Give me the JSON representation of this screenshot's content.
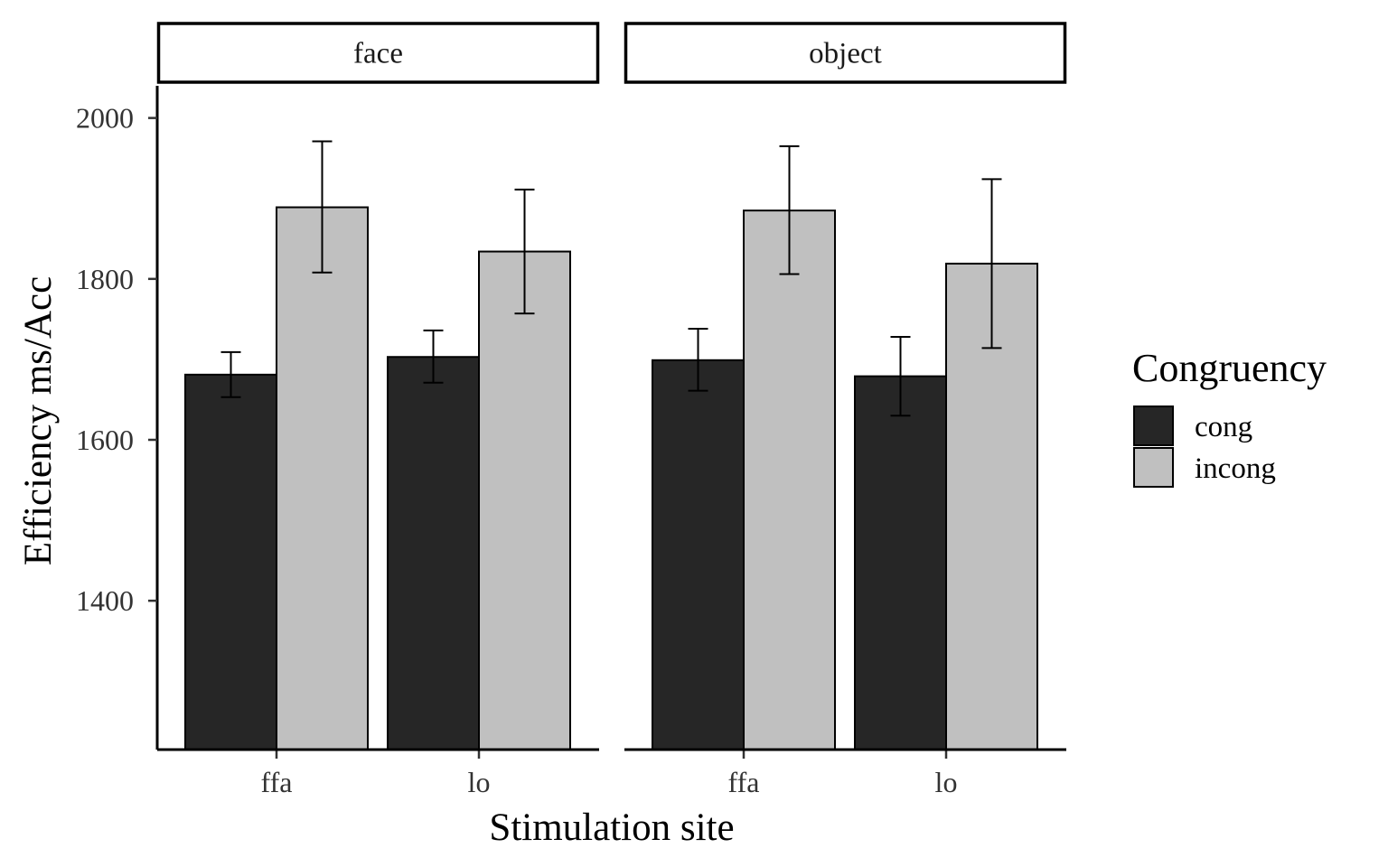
{
  "chart_data": {
    "type": "bar",
    "facets": [
      "face",
      "object"
    ],
    "categories": [
      "ffa",
      "lo"
    ],
    "xlabel": "Stimulation site",
    "ylabel": "Efficiency ms/Acc",
    "yticks": [
      1400,
      1600,
      1800,
      2000
    ],
    "ylim": [
      1215,
      2040
    ],
    "legend": {
      "title": "Congruency",
      "position": "right",
      "entries": [
        {
          "name": "cong",
          "color": "#262626"
        },
        {
          "name": "incong",
          "color": "#c0c0c0"
        }
      ]
    },
    "series": [
      {
        "name": "cong",
        "color": "#262626",
        "values": {
          "face": {
            "ffa": {
              "mean": 1681,
              "low": 1653,
              "high": 1709
            },
            "lo": {
              "mean": 1703,
              "low": 1671,
              "high": 1736
            }
          },
          "object": {
            "ffa": {
              "mean": 1699,
              "low": 1661,
              "high": 1738
            },
            "lo": {
              "mean": 1679,
              "low": 1630,
              "high": 1728
            }
          }
        }
      },
      {
        "name": "incong",
        "color": "#c0c0c0",
        "values": {
          "face": {
            "ffa": {
              "mean": 1889,
              "low": 1808,
              "high": 1971
            },
            "lo": {
              "mean": 1834,
              "low": 1757,
              "high": 1911
            }
          },
          "object": {
            "ffa": {
              "mean": 1885,
              "low": 1806,
              "high": 1965
            },
            "lo": {
              "mean": 1819,
              "low": 1714,
              "high": 1924
            }
          }
        }
      }
    ],
    "grid": false
  }
}
